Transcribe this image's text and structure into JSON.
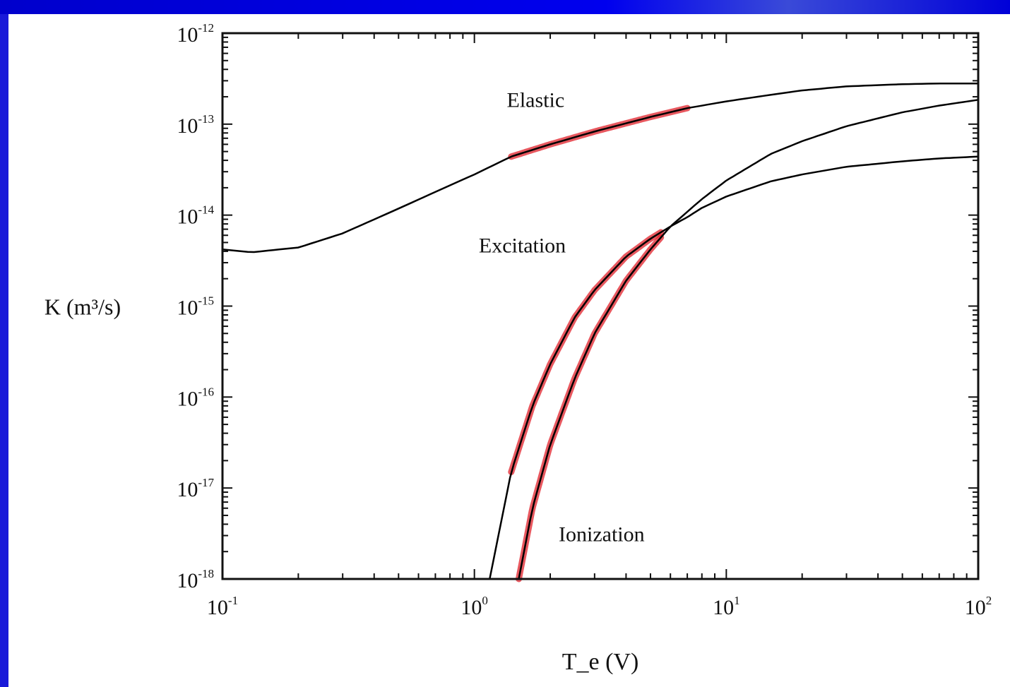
{
  "colors": {
    "slide_border": "#0000ff",
    "curve": "#000000",
    "highlight": "#e0202a"
  },
  "chart_data": {
    "type": "line",
    "xscale": "log",
    "yscale": "log",
    "xlim": [
      0.1,
      100
    ],
    "ylim": [
      1e-18,
      1e-12
    ],
    "xlabel": "T_e (V)",
    "ylabel": "K (m³/s)",
    "x_ticks": [
      {
        "value": 0.1,
        "base": "10",
        "exp": "-1"
      },
      {
        "value": 1,
        "base": "10",
        "exp": "0"
      },
      {
        "value": 10,
        "base": "10",
        "exp": "1"
      },
      {
        "value": 100,
        "base": "10",
        "exp": "2"
      }
    ],
    "y_ticks": [
      {
        "value": 1e-12,
        "base": "10",
        "exp": "-12"
      },
      {
        "value": 1e-13,
        "base": "10",
        "exp": "-13"
      },
      {
        "value": 1e-14,
        "base": "10",
        "exp": "-14"
      },
      {
        "value": 1e-15,
        "base": "10",
        "exp": "-15"
      },
      {
        "value": 1e-16,
        "base": "10",
        "exp": "-16"
      },
      {
        "value": 1e-17,
        "base": "10",
        "exp": "-17"
      },
      {
        "value": 1e-18,
        "base": "10",
        "exp": "-18"
      }
    ],
    "series": [
      {
        "name": "Elastic",
        "x": [
          0.1,
          0.13,
          0.2,
          0.3,
          0.5,
          0.7,
          1.0,
          1.4,
          2.0,
          3.0,
          5.0,
          7.0,
          10,
          15,
          20,
          30,
          50,
          70,
          100
        ],
        "y": [
          4.2e-15,
          3.9e-15,
          4.4e-15,
          6.3e-15,
          1.18e-14,
          1.8e-14,
          2.8e-14,
          4.4e-14,
          6e-14,
          8.3e-14,
          1.2e-13,
          1.5e-13,
          1.78e-13,
          2.1e-13,
          2.35e-13,
          2.6e-13,
          2.75e-13,
          2.8e-13,
          2.8e-13
        ],
        "highlight_range": [
          1.4,
          7.0
        ]
      },
      {
        "name": "Excitation",
        "x": [
          1.15,
          1.4,
          1.7,
          2.0,
          2.5,
          3.0,
          4.0,
          5.0,
          6.0,
          7.0,
          8.0,
          10,
          15,
          20,
          30,
          50,
          70,
          100
        ],
        "y": [
          1e-18,
          1.5e-17,
          8e-17,
          2.3e-16,
          7.5e-16,
          1.5e-15,
          3.5e-15,
          5.5e-15,
          7.5e-15,
          9.5e-15,
          1.2e-14,
          1.6e-14,
          2.35e-14,
          2.8e-14,
          3.4e-14,
          3.9e-14,
          4.2e-14,
          4.4e-14
        ],
        "highlight_range": [
          1.4,
          5.5
        ]
      },
      {
        "name": "Ionization",
        "x": [
          1.5,
          1.7,
          2.0,
          2.5,
          3.0,
          4.0,
          5.0,
          6.0,
          8.0,
          10,
          15,
          20,
          30,
          50,
          70,
          100
        ],
        "y": [
          1e-18,
          6e-18,
          3e-17,
          1.6e-16,
          5e-16,
          1.9e-15,
          4.2e-15,
          7.5e-15,
          1.5e-14,
          2.4e-14,
          4.7e-14,
          6.5e-14,
          9.5e-14,
          1.35e-13,
          1.6e-13,
          1.85e-13
        ],
        "highlight_range": [
          1.5,
          5.5
        ]
      }
    ]
  }
}
